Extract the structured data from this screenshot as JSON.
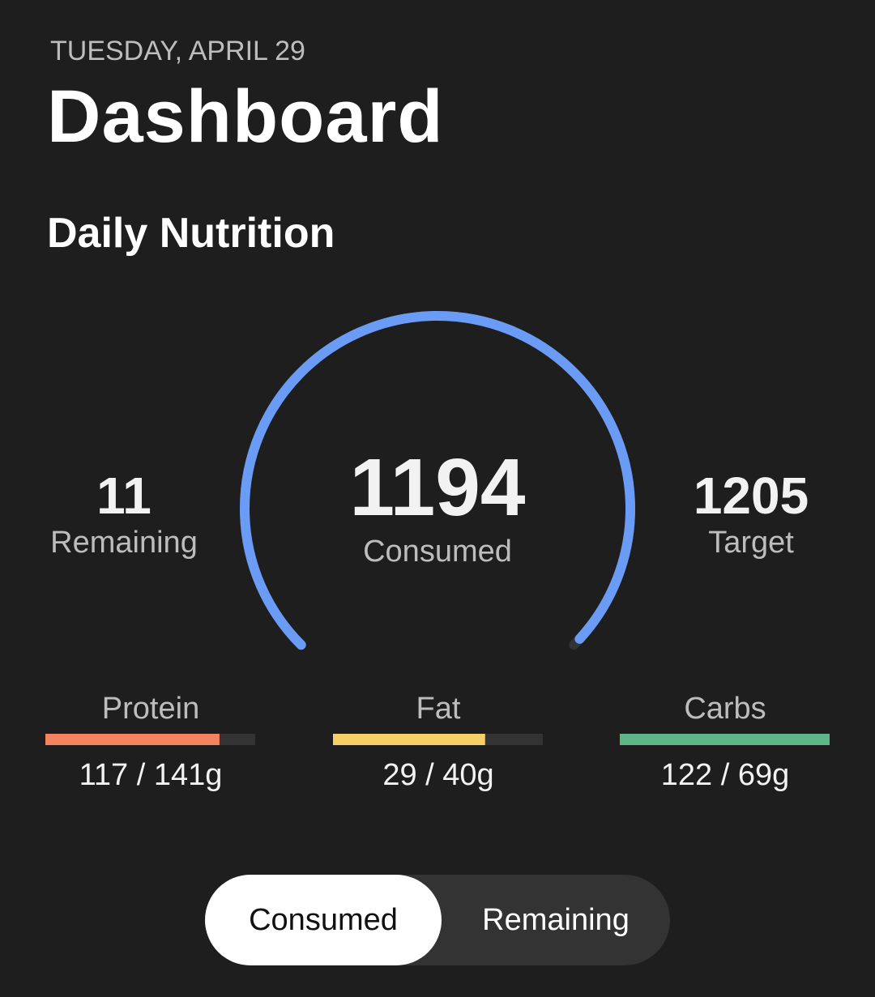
{
  "header": {
    "date": "TUESDAY, APRIL 29",
    "title": "Dashboard"
  },
  "section": {
    "title": "Daily Nutrition"
  },
  "calories": {
    "remaining": {
      "value": 11,
      "label": "Remaining"
    },
    "consumed": {
      "value": 1194,
      "label": "Consumed"
    },
    "target": {
      "value": 1205,
      "label": "Target"
    },
    "color": "#6b9cf5"
  },
  "macros": [
    {
      "name": "Protein",
      "value_label": "117 / 141g",
      "consumed": 117,
      "target": 141,
      "color": "#f4845f"
    },
    {
      "name": "Fat",
      "value_label": "29 / 40g",
      "consumed": 29,
      "target": 40,
      "color": "#f7cf68"
    },
    {
      "name": "Carbs",
      "value_label": "122 / 69g",
      "consumed": 122,
      "target": 69,
      "color": "#5db685"
    }
  ],
  "toggle": {
    "options": [
      "Consumed",
      "Remaining"
    ],
    "selected": 0
  }
}
